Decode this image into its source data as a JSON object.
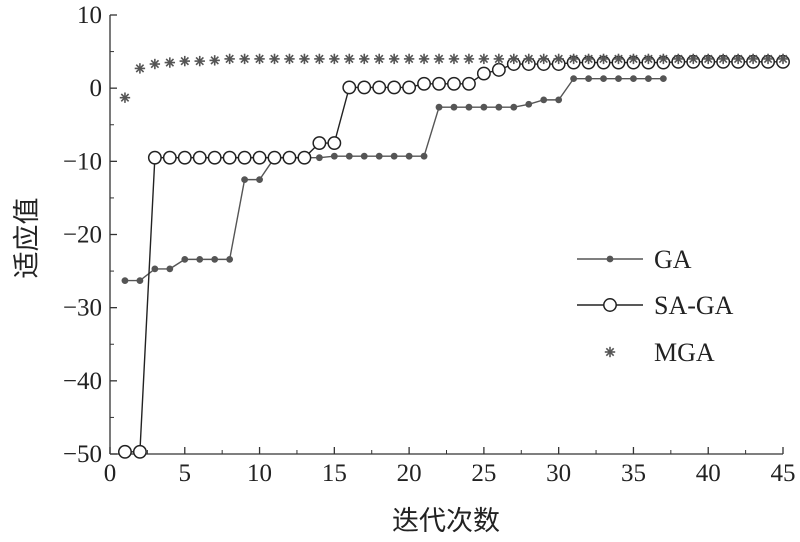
{
  "chart_data": {
    "type": "line",
    "title": "",
    "xlabel": "迭代次数",
    "ylabel": "适应值",
    "xlim": [
      0,
      45
    ],
    "ylim": [
      -50,
      10
    ],
    "xticks": [
      "0",
      "5",
      "10",
      "15",
      "20",
      "25",
      "30",
      "35",
      "40",
      "45"
    ],
    "yticks": [
      "−50",
      "−40",
      "−30",
      "−20",
      "−10",
      "0",
      "10"
    ],
    "grid": false,
    "legend_position": "right-middle",
    "series": [
      {
        "name": "GA",
        "marker": "filled-dot",
        "color": "#555555",
        "x": [
          1,
          2,
          3,
          4,
          5,
          6,
          7,
          8,
          9,
          10,
          11,
          12,
          13,
          14,
          15,
          16,
          17,
          18,
          19,
          20,
          21,
          22,
          23,
          24,
          25,
          26,
          27,
          28,
          29,
          30,
          31,
          32,
          33,
          34,
          35,
          36,
          37
        ],
        "y": [
          -26.3,
          -26.3,
          -24.7,
          -24.7,
          -23.4,
          -23.4,
          -23.4,
          -23.4,
          -12.5,
          -12.5,
          -9.5,
          -9.5,
          -9.5,
          -9.5,
          -9.3,
          -9.3,
          -9.3,
          -9.3,
          -9.3,
          -9.3,
          -9.3,
          -2.6,
          -2.6,
          -2.6,
          -2.6,
          -2.6,
          -2.6,
          -2.2,
          -1.6,
          -1.6,
          1.3,
          1.3,
          1.3,
          1.3,
          1.3,
          1.3,
          1.3
        ]
      },
      {
        "name": "SA-GA",
        "marker": "open-circle",
        "color": "#222222",
        "x": [
          1,
          2,
          3,
          4,
          5,
          6,
          7,
          8,
          9,
          10,
          11,
          12,
          13,
          14,
          15,
          16,
          17,
          18,
          19,
          20,
          21,
          22,
          23,
          24,
          25,
          26,
          27,
          28,
          29,
          30,
          31,
          32,
          33,
          34,
          35,
          36,
          37,
          38,
          39,
          40,
          41,
          42,
          43,
          44,
          45
        ],
        "y": [
          -49.7,
          -49.7,
          -9.5,
          -9.5,
          -9.5,
          -9.5,
          -9.5,
          -9.5,
          -9.5,
          -9.5,
          -9.5,
          -9.5,
          -9.5,
          -7.5,
          -7.5,
          0.1,
          0.1,
          0.1,
          0.1,
          0.1,
          0.6,
          0.6,
          0.6,
          0.6,
          2.0,
          2.5,
          3.3,
          3.3,
          3.3,
          3.3,
          3.5,
          3.5,
          3.5,
          3.5,
          3.5,
          3.5,
          3.5,
          3.6,
          3.6,
          3.6,
          3.6,
          3.6,
          3.6,
          3.6,
          3.6
        ]
      },
      {
        "name": "MGA",
        "marker": "asterisk",
        "color": "#555555",
        "x": [
          1,
          2,
          3,
          4,
          5,
          6,
          7,
          8,
          9,
          10,
          11,
          12,
          13,
          14,
          15,
          16,
          17,
          18,
          19,
          20,
          21,
          22,
          23,
          24,
          25,
          26,
          27,
          28,
          29,
          30,
          31,
          32,
          33,
          34,
          35,
          36,
          37,
          38,
          39,
          40,
          41,
          42,
          43,
          44,
          45
        ],
        "y": [
          -1.3,
          2.7,
          3.3,
          3.5,
          3.7,
          3.7,
          3.8,
          4.0,
          4.0,
          4.0,
          4.0,
          4.0,
          4.0,
          4.0,
          4.0,
          4.0,
          4.0,
          4.0,
          4.0,
          4.0,
          4.0,
          4.0,
          4.0,
          4.0,
          4.0,
          4.0,
          4.0,
          4.0,
          4.0,
          4.0,
          4.0,
          4.0,
          4.0,
          4.0,
          4.0,
          4.0,
          4.0,
          4.0,
          4.0,
          4.0,
          4.0,
          4.0,
          4.0,
          4.0,
          4.0
        ]
      }
    ]
  }
}
